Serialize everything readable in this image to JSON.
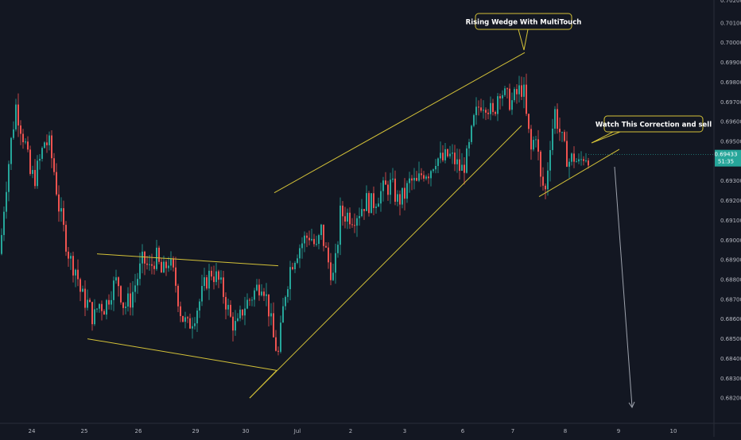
{
  "chart_data": {
    "type": "candlestick",
    "x_axis": {
      "tick_labels": [
        "24",
        "25",
        "26",
        "29",
        "30",
        "Jul",
        "2",
        "3",
        "6",
        "7",
        "8",
        "9",
        "10"
      ]
    },
    "y_axis": {
      "range": [
        0.681,
        0.702
      ],
      "tick_labels": [
        "0.70100",
        "0.70000",
        "0.69900",
        "0.69800",
        "0.69700",
        "0.69600",
        "0.69500",
        "0.69300",
        "0.69200",
        "0.69100",
        "0.69000",
        "0.68900",
        "0.68800",
        "0.68700",
        "0.68600",
        "0.68500",
        "0.68400",
        "0.68300",
        "0.68200"
      ],
      "tick_values": [
        0.701,
        0.7,
        0.699,
        0.698,
        0.697,
        0.696,
        0.695,
        0.693,
        0.692,
        0.691,
        0.69,
        0.689,
        0.688,
        0.687,
        0.686,
        0.685,
        0.684,
        0.683,
        0.682
      ],
      "partial_top_label": "0.70200"
    },
    "last_price": {
      "value": 0.69433,
      "label": "0.69433",
      "countdown": "51:35"
    },
    "colors": {
      "background": "#131722",
      "up": "#26a69a",
      "down": "#ef5350",
      "trendline": "#d4c238",
      "projection": "#9ea3ad",
      "axis_text": "#b2b5be"
    },
    "annotations": {
      "wedge_label": "Rising Wedge With MultiTouch",
      "correction_label": "Watch This Correction and sell"
    },
    "trendlines": [
      {
        "name": "descending-channel-upper",
        "from": [
          0.0,
          0.6893
        ],
        "to": [
          0.0,
          0.6887
        ]
      },
      {
        "name": "descending-channel-lower",
        "from": [
          0.0,
          0.685
        ],
        "to": [
          0.0,
          0.6834
        ]
      },
      {
        "name": "wedge-upper",
        "from": [
          0.0,
          0.6924
        ],
        "to": [
          0.0,
          0.6995
        ]
      },
      {
        "name": "wedge-lower",
        "from": [
          0.0,
          0.682
        ],
        "to": [
          0.0,
          0.6958
        ]
      },
      {
        "name": "correction-support",
        "from": [
          0.0,
          0.6922
        ],
        "to": [
          0.0,
          0.6946
        ]
      }
    ]
  }
}
